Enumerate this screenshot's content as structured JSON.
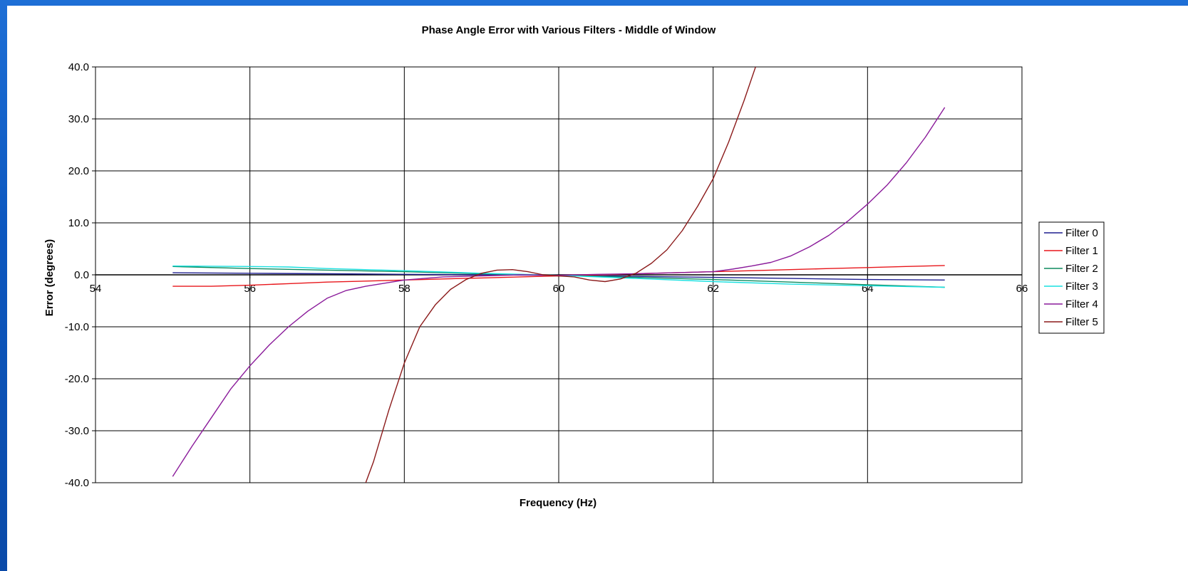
{
  "chart_data": {
    "type": "line",
    "title": "Phase Angle Error with Various Filters - Middle of Window",
    "xlabel": "Frequency (Hz)",
    "ylabel": "Error (degrees)",
    "xlim": [
      54,
      66
    ],
    "ylim": [
      -40,
      40
    ],
    "x_ticks": [
      "54",
      "56",
      "58",
      "60",
      "62",
      "64",
      "66"
    ],
    "y_ticks": [
      "40.0",
      "30.0",
      "20.0",
      "10.0",
      "0.0",
      "-10.0",
      "-20.0",
      "-30.0",
      "-40.0"
    ],
    "grid": true,
    "legend_position": "right",
    "series": [
      {
        "name": "Filter 0",
        "color": "#1f1f8f",
        "x": [
          55,
          56,
          57,
          58,
          59,
          60,
          61,
          62,
          63,
          64,
          65
        ],
        "y": [
          0.4,
          0.3,
          0.2,
          0.1,
          0.0,
          -0.1,
          -0.3,
          -0.5,
          -0.7,
          -0.9,
          -1.0
        ]
      },
      {
        "name": "Filter 1",
        "color": "#e8161b",
        "x": [
          55,
          55.5,
          56,
          56.5,
          57,
          57.5,
          58,
          58.5,
          59,
          59.5,
          60,
          60.5,
          61,
          61.5,
          62,
          62.5,
          63,
          63.5,
          64,
          64.5,
          65
        ],
        "y": [
          -2.2,
          -2.2,
          -2.0,
          -1.7,
          -1.4,
          -1.2,
          -1.0,
          -0.8,
          -0.6,
          -0.4,
          -0.2,
          0.0,
          0.2,
          0.4,
          0.6,
          0.8,
          1.0,
          1.2,
          1.4,
          1.6,
          1.8
        ]
      },
      {
        "name": "Filter 2",
        "color": "#0f8a5f",
        "x": [
          55,
          56,
          57,
          58,
          59,
          60,
          61,
          62,
          63,
          64,
          65
        ],
        "y": [
          1.6,
          1.2,
          0.9,
          0.6,
          0.2,
          -0.1,
          -0.5,
          -0.9,
          -1.4,
          -1.9,
          -2.4
        ]
      },
      {
        "name": "Filter 3",
        "color": "#19e0e0",
        "x": [
          55,
          56,
          56.5,
          57,
          58,
          59,
          60,
          61,
          62,
          63,
          64,
          65
        ],
        "y": [
          1.7,
          1.6,
          1.5,
          1.2,
          0.8,
          0.3,
          -0.1,
          -0.7,
          -1.3,
          -1.8,
          -2.1,
          -2.4
        ]
      },
      {
        "name": "Filter 4",
        "color": "#8a1a9a",
        "x": [
          55,
          55.25,
          55.5,
          55.75,
          56,
          56.25,
          56.5,
          56.75,
          57,
          57.25,
          57.5,
          57.75,
          58,
          58.5,
          59,
          59.5,
          60,
          60.5,
          61,
          61.5,
          62,
          62.25,
          62.5,
          62.75,
          63,
          63.25,
          63.5,
          63.75,
          64,
          64.25,
          64.5,
          64.75,
          65
        ],
        "y": [
          -38.8,
          -33.0,
          -27.5,
          -22.0,
          -17.5,
          -13.5,
          -10.0,
          -7.0,
          -4.5,
          -3.0,
          -2.2,
          -1.6,
          -1.0,
          -0.4,
          -0.2,
          0.0,
          -0.1,
          0.1,
          0.2,
          0.4,
          0.6,
          1.1,
          1.7,
          2.4,
          3.6,
          5.4,
          7.6,
          10.4,
          13.6,
          17.2,
          21.5,
          26.5,
          32.2
        ]
      },
      {
        "name": "Filter 5",
        "color": "#8b1a1a",
        "x": [
          57.5,
          57.6,
          57.8,
          58.0,
          58.2,
          58.4,
          58.6,
          58.8,
          59.0,
          59.2,
          59.4,
          59.6,
          59.8,
          60.0,
          60.2,
          60.4,
          60.6,
          60.8,
          61.0,
          61.2,
          61.4,
          61.6,
          61.8,
          62.0,
          62.2,
          62.4,
          62.55
        ],
        "y": [
          -40.0,
          -36.0,
          -26.0,
          -17.0,
          -10.0,
          -5.8,
          -2.8,
          -0.9,
          0.3,
          0.9,
          1.0,
          0.6,
          0.0,
          -0.2,
          -0.4,
          -1.0,
          -1.3,
          -0.8,
          0.3,
          2.2,
          4.8,
          8.5,
          13.2,
          18.5,
          25.5,
          33.5,
          40.0
        ]
      }
    ]
  }
}
